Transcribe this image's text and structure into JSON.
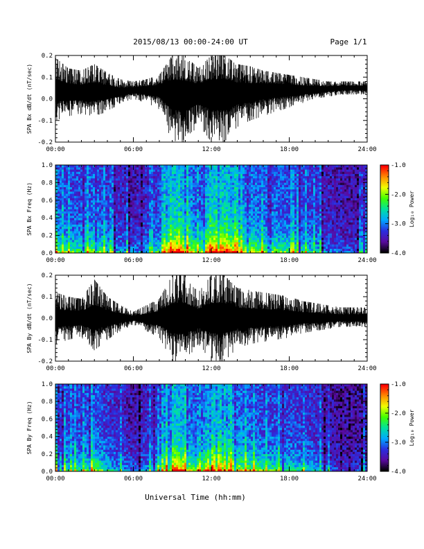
{
  "header": {
    "title": "2015/08/13  00:00-24:00 UT",
    "page": "Page 1/1"
  },
  "footer": {
    "xlabel": "Universal Time (hh:mm)"
  },
  "colorbar": {
    "label": "Log₁₀ Power",
    "ticks": [
      "-1.0",
      "-2.0",
      "-3.0",
      "-4.0"
    ],
    "tick_values": [
      -1,
      -2,
      -3,
      -4
    ],
    "range": [
      -4,
      -1
    ],
    "colormap": [
      "#000000",
      "#5a0aa0",
      "#2a2ee0",
      "#00a8ff",
      "#00e0a0",
      "#40ff00",
      "#f0ff00",
      "#ff8a00",
      "#ff0000"
    ]
  },
  "chart_data": [
    {
      "type": "line",
      "ylabel": "SPA Bx dB/dt (nT/sec)",
      "xlim": [
        0,
        24
      ],
      "ylim": [
        -0.2,
        0.2
      ],
      "xticks": [
        "00:00",
        "06:00",
        "12:00",
        "18:00",
        "24:00"
      ],
      "xtick_values": [
        0,
        6,
        12,
        18,
        24
      ],
      "yticks": [
        "0.2",
        "0.1",
        "0.0",
        "-0.1",
        "-0.2"
      ],
      "ytick_values": [
        0.2,
        0.1,
        0.0,
        -0.1,
        -0.2
      ],
      "series": [
        {
          "hours": [
            0,
            1,
            2,
            3,
            4,
            5,
            6,
            7,
            8,
            9,
            10,
            11,
            12,
            13,
            14,
            15,
            16,
            17,
            18,
            19,
            20,
            21,
            22,
            23,
            24
          ],
          "envelope_upper": [
            0.19,
            0.14,
            0.13,
            0.16,
            0.12,
            0.09,
            0.08,
            0.09,
            0.11,
            0.2,
            0.2,
            0.14,
            0.2,
            0.2,
            0.16,
            0.15,
            0.13,
            0.12,
            0.11,
            0.1,
            0.09,
            0.08,
            0.08,
            0.08,
            0.08
          ],
          "envelope_lower": [
            -0.1,
            -0.08,
            -0.07,
            -0.08,
            -0.06,
            -0.02,
            0.0,
            -0.02,
            -0.05,
            -0.2,
            -0.2,
            -0.12,
            -0.2,
            -0.2,
            -0.13,
            -0.1,
            -0.08,
            -0.06,
            -0.04,
            -0.02,
            0.0,
            0.01,
            0.02,
            0.02,
            0.02
          ],
          "baseline": [
            0.04,
            0.03,
            0.03,
            0.03,
            0.03,
            0.03,
            0.04,
            0.04,
            0.04,
            0.03,
            0.02,
            0.03,
            0.03,
            0.03,
            0.03,
            0.03,
            0.04,
            0.04,
            0.04,
            0.04,
            0.04,
            0.045,
            0.05,
            0.05,
            0.05
          ]
        }
      ]
    },
    {
      "type": "heatmap",
      "ylabel": "SPA Bx Freq (Hz)",
      "xlim": [
        0,
        24
      ],
      "ylim": [
        0,
        1.0
      ],
      "xticks": [
        "00:00",
        "06:00",
        "12:00",
        "18:00",
        "24:00"
      ],
      "xtick_values": [
        0,
        6,
        12,
        18,
        24
      ],
      "yticks": [
        "1.0",
        "0.8",
        "0.6",
        "0.4",
        "0.2",
        "0.0"
      ],
      "ytick_values": [
        1.0,
        0.8,
        0.6,
        0.4,
        0.2,
        0.0
      ],
      "zlim": [
        -4,
        -1
      ],
      "activity": {
        "hours": [
          0,
          1,
          2,
          3,
          4,
          5,
          6,
          7,
          8,
          9,
          10,
          11,
          12,
          13,
          14,
          15,
          16,
          17,
          18,
          19,
          20,
          21,
          22,
          23,
          24
        ],
        "level": [
          0.55,
          0.5,
          0.5,
          0.6,
          0.4,
          0.3,
          0.25,
          0.3,
          0.45,
          0.95,
          0.85,
          0.5,
          0.95,
          0.95,
          0.7,
          0.65,
          0.55,
          0.55,
          0.5,
          0.45,
          0.4,
          0.25,
          0.2,
          0.2,
          0.2
        ]
      }
    },
    {
      "type": "line",
      "ylabel": "SPA By dB/dt (nT/sec)",
      "xlim": [
        0,
        24
      ],
      "ylim": [
        -0.2,
        0.2
      ],
      "xticks": [
        "00:00",
        "06:00",
        "12:00",
        "18:00",
        "24:00"
      ],
      "xtick_values": [
        0,
        6,
        12,
        18,
        24
      ],
      "yticks": [
        "0.2",
        "0.1",
        "0.0",
        "-0.1",
        "-0.2"
      ],
      "ytick_values": [
        0.2,
        0.1,
        0.0,
        -0.1,
        -0.2
      ],
      "series": [
        {
          "hours": [
            0,
            1,
            2,
            3,
            4,
            5,
            6,
            7,
            8,
            9,
            10,
            11,
            12,
            13,
            14,
            15,
            16,
            17,
            18,
            19,
            20,
            21,
            22,
            23,
            24
          ],
          "envelope_upper": [
            0.12,
            0.1,
            0.09,
            0.18,
            0.1,
            0.06,
            0.03,
            0.06,
            0.09,
            0.2,
            0.2,
            0.12,
            0.2,
            0.2,
            0.14,
            0.13,
            0.12,
            0.11,
            0.1,
            0.08,
            0.07,
            0.06,
            0.05,
            0.05,
            0.05
          ],
          "envelope_lower": [
            -0.12,
            -0.1,
            -0.09,
            -0.15,
            -0.1,
            -0.06,
            -0.03,
            -0.06,
            -0.09,
            -0.2,
            -0.2,
            -0.12,
            -0.2,
            -0.2,
            -0.14,
            -0.12,
            -0.11,
            -0.1,
            -0.09,
            -0.07,
            -0.06,
            -0.05,
            -0.04,
            -0.04,
            -0.04
          ],
          "baseline": [
            0.0,
            0.0,
            0.0,
            0.0,
            0.0,
            0.0,
            0.0,
            0.0,
            0.0,
            0.0,
            0.0,
            0.0,
            0.0,
            0.0,
            0.0,
            0.0,
            0.0,
            0.0,
            0.0,
            0.0,
            0.0,
            0.0,
            0.0,
            0.0,
            0.0
          ]
        }
      ]
    },
    {
      "type": "heatmap",
      "ylabel": "SPA By Freq (Hz)",
      "xlim": [
        0,
        24
      ],
      "ylim": [
        0,
        1.0
      ],
      "xticks": [
        "00:00",
        "06:00",
        "12:00",
        "18:00",
        "24:00"
      ],
      "xtick_values": [
        0,
        6,
        12,
        18,
        24
      ],
      "yticks": [
        "1.0",
        "0.8",
        "0.6",
        "0.4",
        "0.2",
        "0.0"
      ],
      "ytick_values": [
        1.0,
        0.8,
        0.6,
        0.4,
        0.2,
        0.0
      ],
      "zlim": [
        -4,
        -1
      ],
      "activity": {
        "hours": [
          0,
          1,
          2,
          3,
          4,
          5,
          6,
          7,
          8,
          9,
          10,
          11,
          12,
          13,
          14,
          15,
          16,
          17,
          18,
          19,
          20,
          21,
          22,
          23,
          24
        ],
        "level": [
          0.5,
          0.45,
          0.45,
          0.6,
          0.4,
          0.3,
          0.2,
          0.3,
          0.45,
          0.95,
          0.8,
          0.45,
          0.95,
          0.95,
          0.65,
          0.6,
          0.5,
          0.5,
          0.45,
          0.4,
          0.35,
          0.2,
          0.15,
          0.15,
          0.15
        ]
      }
    }
  ]
}
